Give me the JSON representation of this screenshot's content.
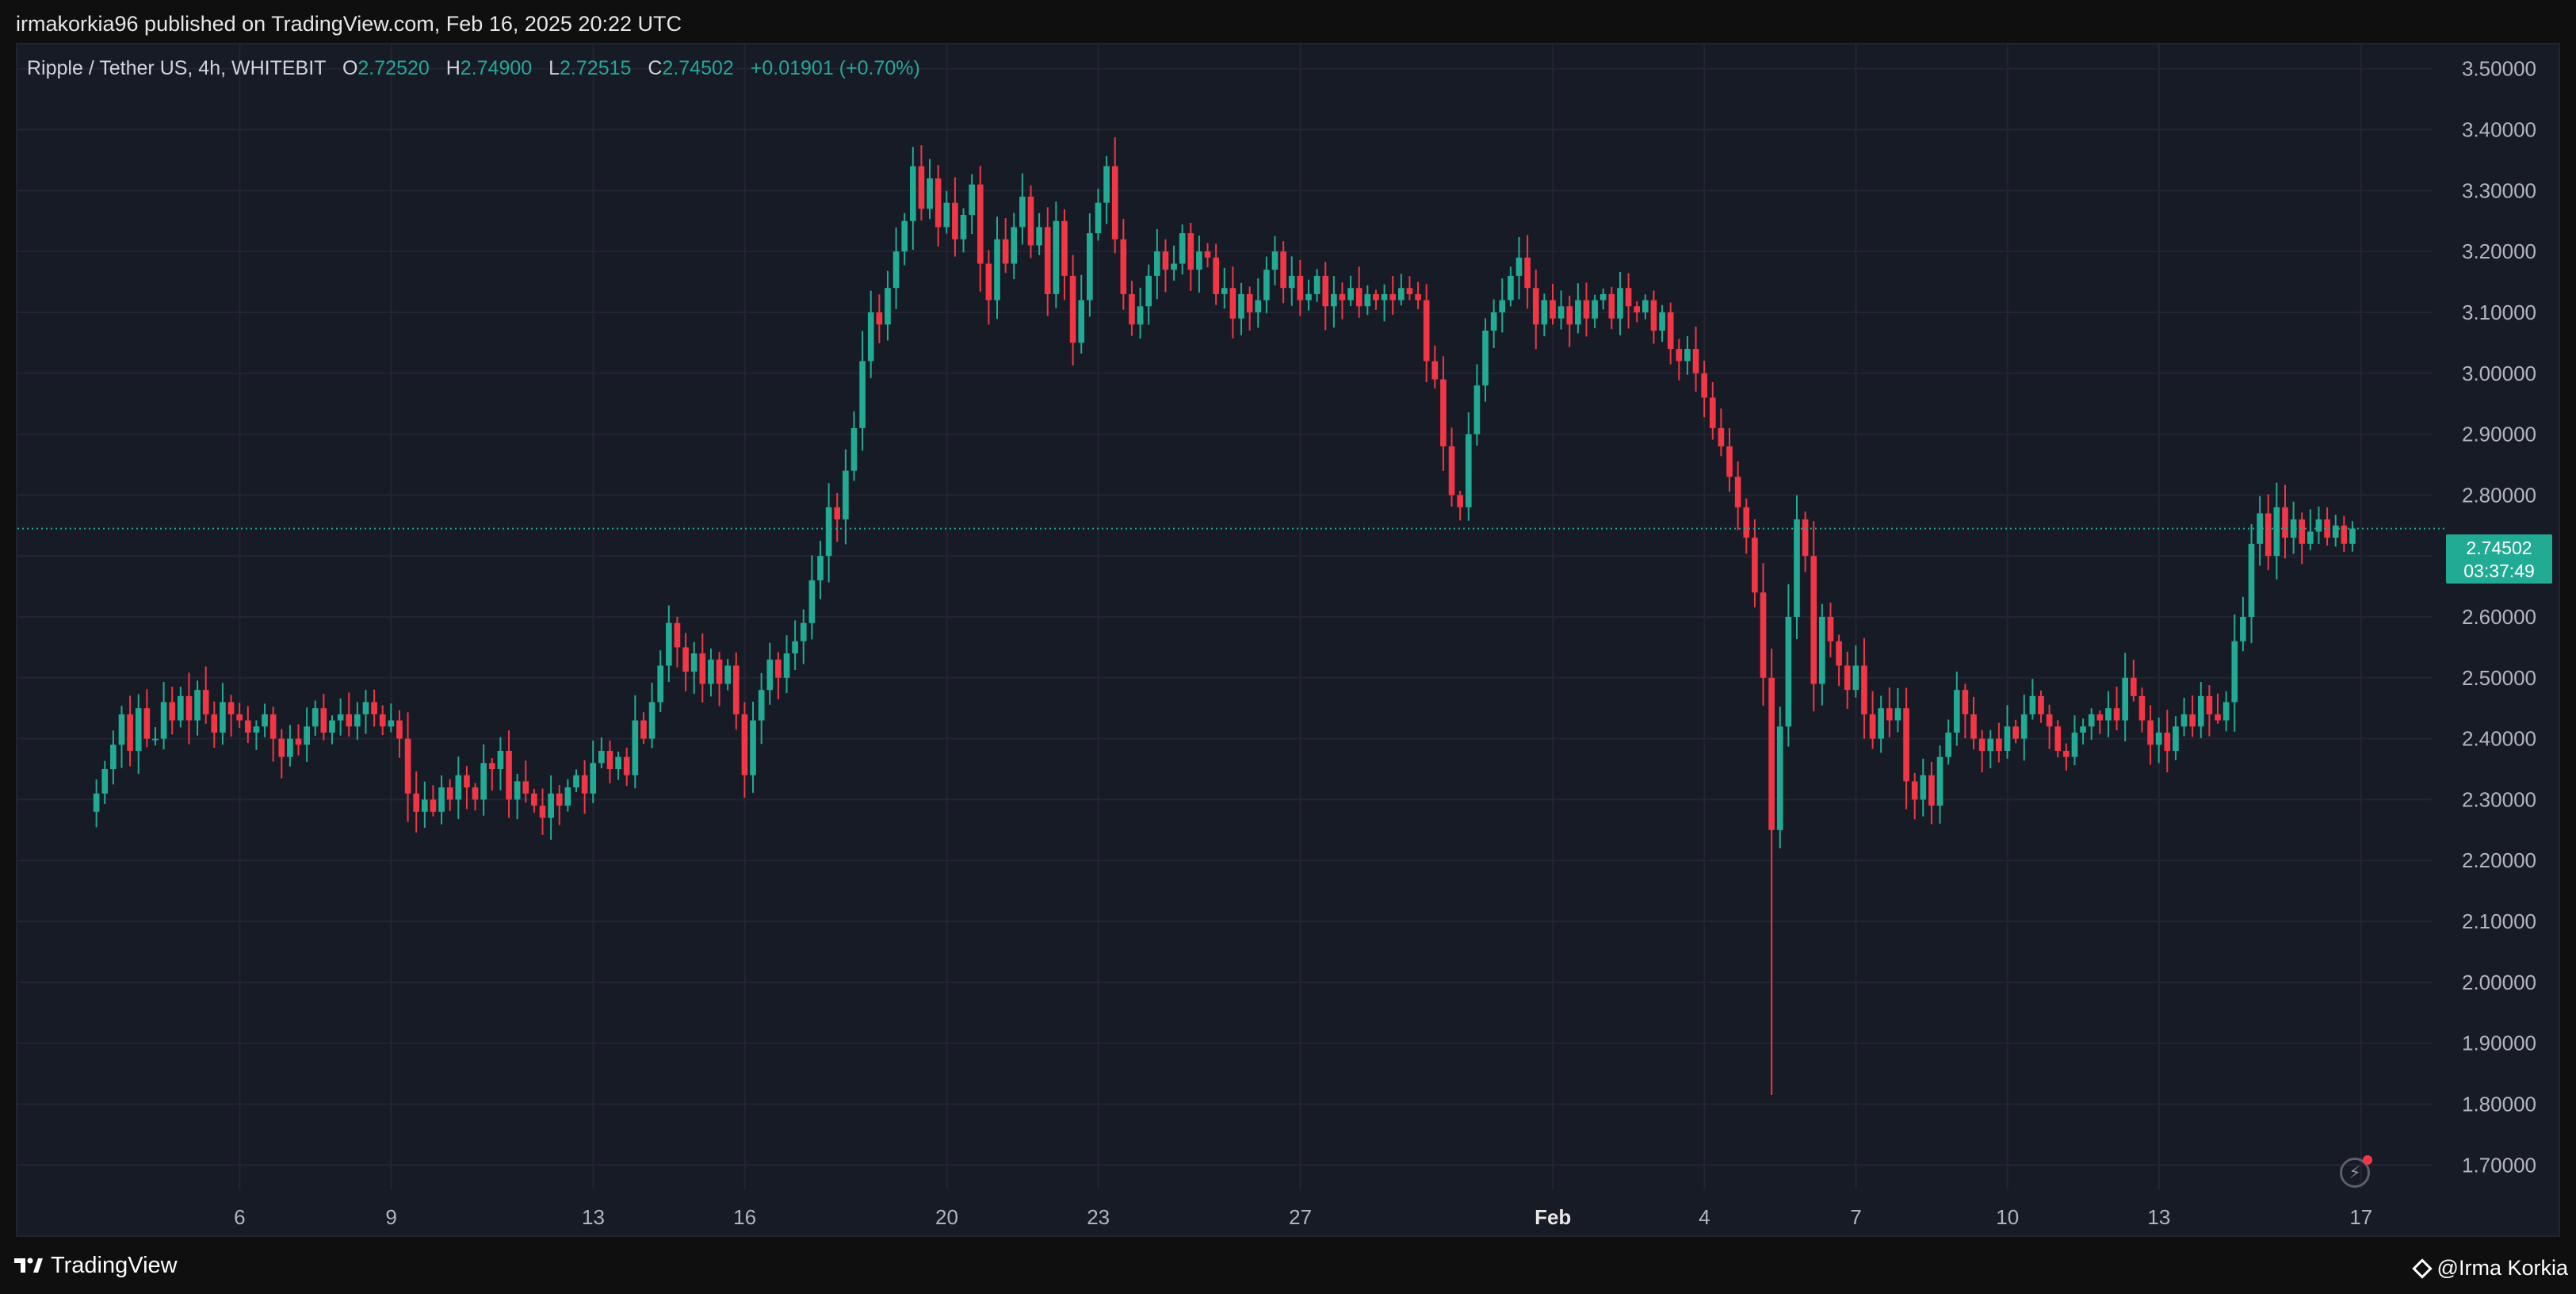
{
  "header": {
    "publish_line": "irmakorkia96 published on TradingView.com, Feb 16, 2025 20:22 UTC"
  },
  "legend": {
    "symbol": "Ripple / Tether US, 4h, WHITEBIT",
    "o_label": "O",
    "o_value": "2.72520",
    "h_label": "H",
    "h_value": "2.74900",
    "l_label": "L",
    "l_value": "2.72515",
    "c_label": "C",
    "c_value": "2.74502",
    "change": "+0.01901 (+0.70%)"
  },
  "price_badge": {
    "price": "2.74502",
    "countdown": "03:37:49"
  },
  "footer": {
    "brand": "TradingView",
    "author": "@Irma Korkia"
  },
  "colors": {
    "up": "#22ab94",
    "down": "#f23645",
    "background": "#171b26",
    "grid": "#232632"
  },
  "chart_data": {
    "type": "candlestick",
    "y_ticks": [
      "3.50000",
      "3.40000",
      "3.30000",
      "3.20000",
      "3.10000",
      "3.00000",
      "2.90000",
      "2.80000",
      "2.70000",
      "2.60000",
      "2.50000",
      "2.40000",
      "2.30000",
      "2.20000",
      "2.10000",
      "2.00000",
      "1.90000",
      "1.80000",
      "1.70000"
    ],
    "ylim": [
      1.66,
      3.54
    ],
    "x_ticks": [
      {
        "label": "6",
        "day": 6
      },
      {
        "label": "9",
        "day": 9
      },
      {
        "label": "13",
        "day": 13
      },
      {
        "label": "16",
        "day": 16
      },
      {
        "label": "20",
        "day": 20
      },
      {
        "label": "23",
        "day": 23
      },
      {
        "label": "27",
        "day": 27
      },
      {
        "label": "Feb",
        "day": 32,
        "bold": true
      },
      {
        "label": "4",
        "day": 35
      },
      {
        "label": "7",
        "day": 38
      },
      {
        "label": "10",
        "day": 41
      },
      {
        "label": "13",
        "day": 44
      },
      {
        "label": "17",
        "day": 48
      }
    ],
    "x_range_days": [
      1.6,
      49.4
    ],
    "current_price": 2.74502,
    "last_candle_day": 47.83,
    "candle_interval_hours": 4,
    "closes": [
      2.31,
      2.35,
      2.39,
      2.44,
      2.38,
      2.45,
      2.4,
      2.4,
      2.46,
      2.43,
      2.47,
      2.43,
      2.48,
      2.44,
      2.41,
      2.46,
      2.44,
      2.43,
      2.41,
      2.42,
      2.44,
      2.4,
      2.37,
      2.4,
      2.39,
      2.42,
      2.45,
      2.41,
      2.43,
      2.44,
      2.42,
      2.44,
      2.46,
      2.44,
      2.42,
      2.43,
      2.4,
      2.31,
      2.28,
      2.3,
      2.28,
      2.32,
      2.3,
      2.34,
      2.32,
      2.3,
      2.36,
      2.35,
      2.38,
      2.3,
      2.33,
      2.31,
      2.29,
      2.27,
      2.31,
      2.29,
      2.32,
      2.34,
      2.31,
      2.36,
      2.38,
      2.35,
      2.37,
      2.34,
      2.43,
      2.4,
      2.46,
      2.52,
      2.59,
      2.55,
      2.51,
      2.54,
      2.49,
      2.53,
      2.49,
      2.52,
      2.44,
      2.34,
      2.43,
      2.48,
      2.53,
      2.5,
      2.54,
      2.56,
      2.59,
      2.66,
      2.7,
      2.78,
      2.76,
      2.84,
      2.91,
      3.02,
      3.1,
      3.08,
      3.14,
      3.2,
      3.25,
      3.34,
      3.27,
      3.32,
      3.24,
      3.28,
      3.22,
      3.26,
      3.31,
      3.18,
      3.12,
      3.22,
      3.18,
      3.24,
      3.29,
      3.21,
      3.24,
      3.13,
      3.25,
      3.16,
      3.05,
      3.12,
      3.23,
      3.28,
      3.34,
      3.22,
      3.13,
      3.08,
      3.11,
      3.16,
      3.2,
      3.17,
      3.18,
      3.23,
      3.17,
      3.2,
      3.19,
      3.13,
      3.14,
      3.09,
      3.13,
      3.1,
      3.12,
      3.17,
      3.2,
      3.14,
      3.16,
      3.12,
      3.13,
      3.16,
      3.11,
      3.13,
      3.12,
      3.14,
      3.11,
      3.13,
      3.12,
      3.13,
      3.12,
      3.14,
      3.13,
      3.12,
      3.02,
      2.99,
      2.88,
      2.8,
      2.78,
      2.9,
      2.98,
      3.07,
      3.1,
      3.12,
      3.16,
      3.19,
      3.14,
      3.08,
      3.12,
      3.09,
      3.11,
      3.08,
      3.12,
      3.09,
      3.12,
      3.13,
      3.09,
      3.14,
      3.11,
      3.1,
      3.12,
      3.07,
      3.1,
      3.04,
      3.02,
      3.04,
      3.0,
      2.96,
      2.91,
      2.88,
      2.83,
      2.78,
      2.73,
      2.64,
      2.5,
      2.25,
      2.42,
      2.6,
      2.76,
      2.7,
      2.49,
      2.6,
      2.56,
      2.52,
      2.48,
      2.52,
      2.44,
      2.4,
      2.45,
      2.43,
      2.45,
      2.33,
      2.3,
      2.34,
      2.29,
      2.37,
      2.41,
      2.48,
      2.44,
      2.4,
      2.38,
      2.4,
      2.38,
      2.42,
      2.4,
      2.44,
      2.47,
      2.44,
      2.42,
      2.38,
      2.37,
      2.41,
      2.42,
      2.44,
      2.43,
      2.45,
      2.43,
      2.5,
      2.47,
      2.43,
      2.39,
      2.41,
      2.38,
      2.42,
      2.44,
      2.42,
      2.47,
      2.44,
      2.43,
      2.46,
      2.56,
      2.6,
      2.72,
      2.77,
      2.7,
      2.78,
      2.73,
      2.76,
      2.72,
      2.74,
      2.76,
      2.73,
      2.75,
      2.72,
      2.74502
    ]
  }
}
